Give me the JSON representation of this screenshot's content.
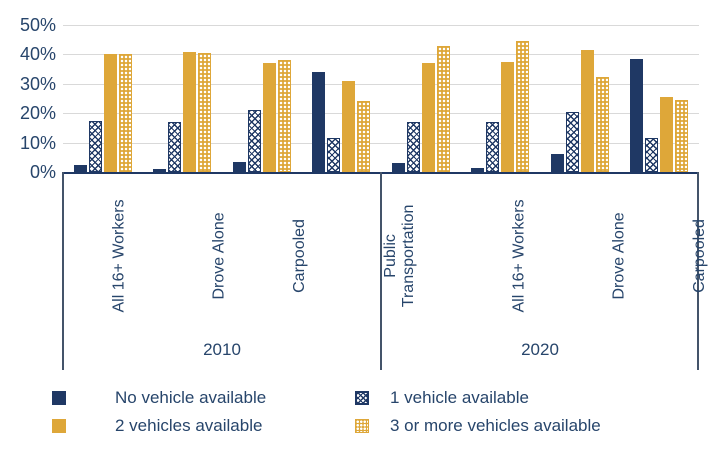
{
  "colors": {
    "navy": "#1F3864",
    "gold": "#DEA739",
    "gridline": "#D9D9D9",
    "axis_line": "#1F3864",
    "box_line": "#44546A",
    "text": "#27456B"
  },
  "chart_data": {
    "type": "bar",
    "title": "",
    "xlabel": "",
    "ylabel": "",
    "ylim": [
      0,
      50
    ],
    "yticks": [
      "0%",
      "10%",
      "20%",
      "30%",
      "40%",
      "50%"
    ],
    "grid": "horizontal",
    "legend_position": "bottom",
    "categories": [
      "All 16+ Workers",
      "Drove Alone",
      "Carpooled",
      "Public Transportation"
    ],
    "wrapped_categories": [
      "Public Transportation"
    ],
    "groups": [
      {
        "label": "2010"
      },
      {
        "label": "2020"
      }
    ],
    "series": [
      {
        "name": "No vehicle available",
        "swatch": "navy-solid",
        "values": {
          "2010": [
            2.5,
            1,
            3.5,
            34
          ],
          "2020": [
            3,
            1.5,
            6,
            38.5
          ]
        }
      },
      {
        "name": "1 vehicle available",
        "swatch": "navy-crosshatch",
        "values": {
          "2010": [
            17.5,
            17,
            21,
            11.5
          ],
          "2020": [
            17,
            17,
            20.5,
            11.5
          ]
        }
      },
      {
        "name": "2 vehicles available",
        "swatch": "gold-solid",
        "values": {
          "2010": [
            40,
            41,
            37,
            31
          ],
          "2020": [
            37,
            37.5,
            41.5,
            25.5
          ]
        }
      },
      {
        "name": "3 or more vehicles available",
        "swatch": "gold-dots",
        "values": {
          "2010": [
            40,
            40.5,
            38,
            24
          ],
          "2020": [
            43,
            44.5,
            32.5,
            24.5
          ]
        }
      }
    ]
  }
}
